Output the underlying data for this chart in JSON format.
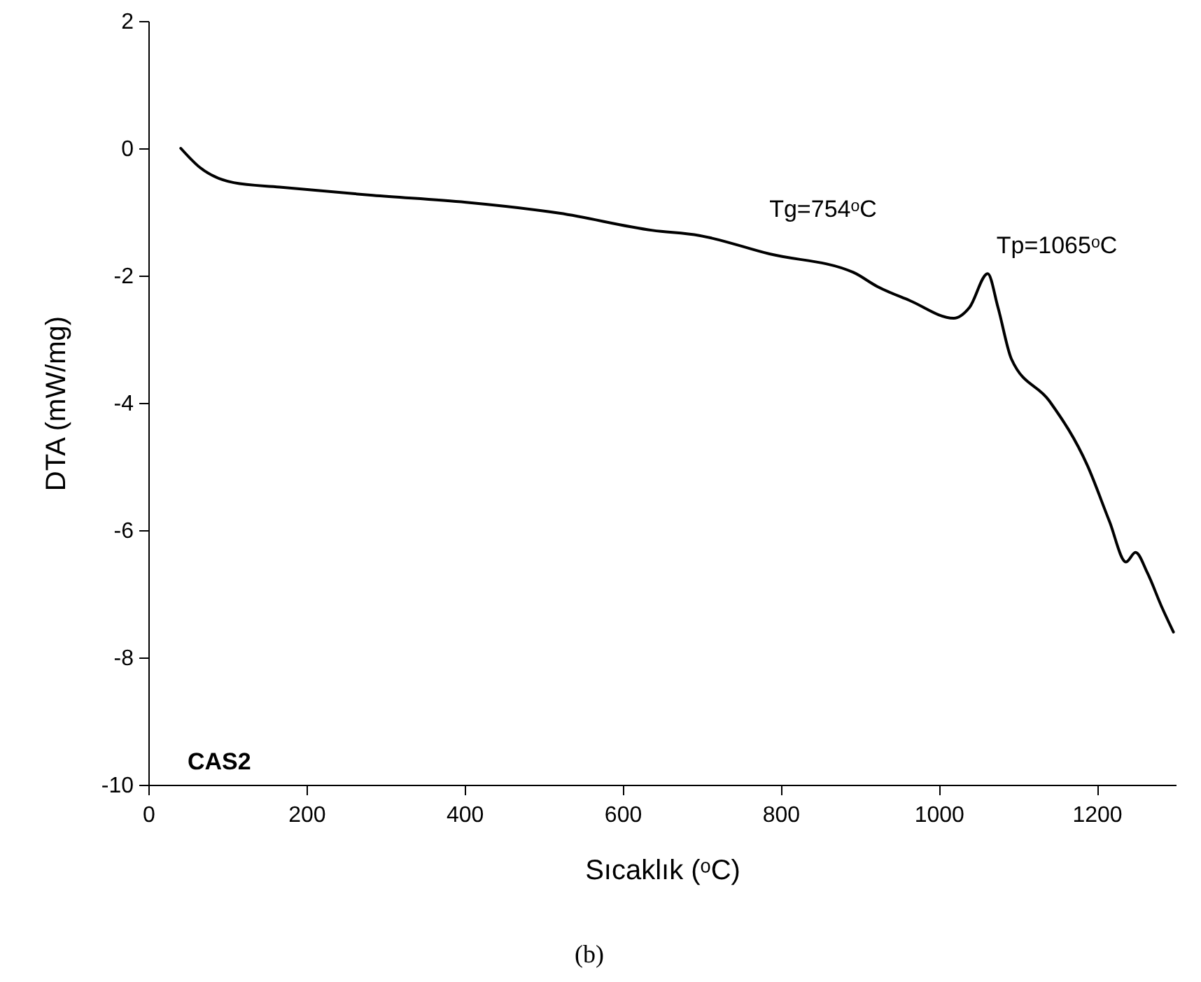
{
  "chart_data": {
    "type": "line",
    "xlabel": "Sıcaklık (ᵒC)",
    "ylabel": "DTA (mW/mg)",
    "x": [
      41,
      65,
      108,
      166,
      284,
      402,
      520,
      638,
      697,
      786,
      892,
      922,
      963,
      1019,
      1039,
      1062,
      1075,
      1092,
      1140,
      1188,
      1216,
      1237,
      1249,
      1264,
      1282,
      1297
    ],
    "series": [
      {
        "color": "#000000",
        "values": [
          0,
          -0.3,
          -0.54,
          -0.61,
          -0.74,
          -0.85,
          -1.02,
          -1.29,
          -1.37,
          -1.66,
          -1.95,
          -2.17,
          -2.39,
          -2.67,
          -2.5,
          -1.97,
          -2.5,
          -3.31,
          -3.97,
          -4.98,
          -5.86,
          -6.5,
          -6.35,
          -6.67,
          -7.2,
          -7.6
        ]
      }
    ],
    "xlim": [
      0,
      1300
    ],
    "xticks": [
      0,
      200,
      400,
      600,
      800,
      1000,
      1200
    ],
    "ylim": [
      -10,
      2
    ],
    "yticks": [
      -10,
      -8,
      -6,
      -4,
      -2,
      0,
      2
    ],
    "grid": false,
    "marker": "none",
    "line_style": "solid",
    "annotations": [
      "Tg=754ᵒC",
      "Tp=1065ᵒC",
      "CAS2",
      "(b)"
    ]
  }
}
